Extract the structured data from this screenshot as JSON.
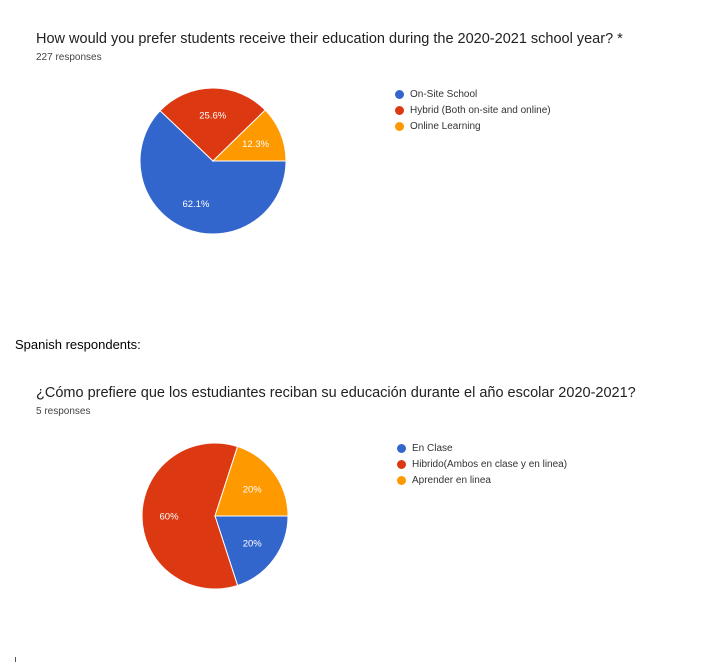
{
  "chart_data": [
    {
      "type": "pie",
      "title": "How would you prefer students receive their education during the 2020-2021 school year? *",
      "subtitle": "227 responses",
      "legend_position": "right",
      "categories": [
        "On-Site School",
        "Hybrid (Both on-site and online)",
        "Online Learning"
      ],
      "values": [
        62.1,
        25.6,
        12.3
      ],
      "labels": [
        "62.1%",
        "25.6%",
        "12.3%"
      ],
      "colors": [
        "#3366cc",
        "#dc3912",
        "#ff9900"
      ]
    },
    {
      "type": "pie",
      "title": "¿Cómo prefiere que los estudiantes reciban su educación durante el año escolar 2020-2021?",
      "subtitle": "5 responses",
      "legend_position": "right",
      "categories": [
        "En Clase",
        "Hibrido(Ambos en clase y en linea)",
        "Aprender en linea"
      ],
      "values": [
        20,
        60,
        20
      ],
      "labels": [
        "20%",
        "60%",
        "20%"
      ],
      "colors": [
        "#3366cc",
        "#dc3912",
        "#ff9900"
      ]
    }
  ],
  "section_label": "Spanish respondents:"
}
